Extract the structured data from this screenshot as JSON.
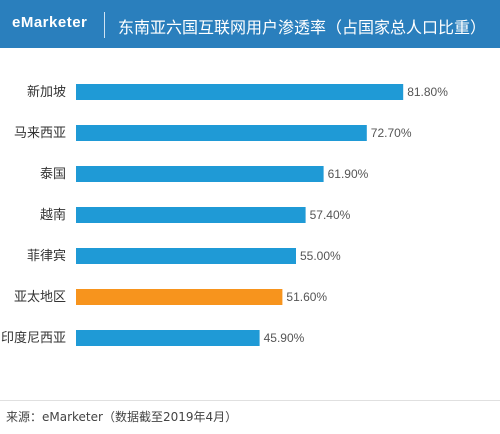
{
  "header": {
    "brand": "eMarketer",
    "title": "东南亚六国互联网用户渗透率（占国家总人口比重）"
  },
  "chart_data": {
    "type": "bar",
    "orientation": "horizontal",
    "title": "东南亚六国互联网用户渗透率（占国家总人口比重）",
    "categories": [
      "新加坡",
      "马来西亚",
      "泰国",
      "越南",
      "菲律宾",
      "亚太地区",
      "印度尼西亚"
    ],
    "values": [
      81.8,
      72.7,
      61.9,
      57.4,
      55.0,
      51.6,
      45.9
    ],
    "value_labels": [
      "81.80%",
      "72.70%",
      "61.90%",
      "57.40%",
      "55.00%",
      "51.60%",
      "45.90%"
    ],
    "xlim": [
      0,
      100
    ],
    "grid": false,
    "colors": {
      "default": "#1f9ad6",
      "highlight": "#f7941d"
    },
    "highlight_category": "亚太地区"
  },
  "footer": {
    "source": "来源：eMarketer（数据截至2019年4月）"
  }
}
